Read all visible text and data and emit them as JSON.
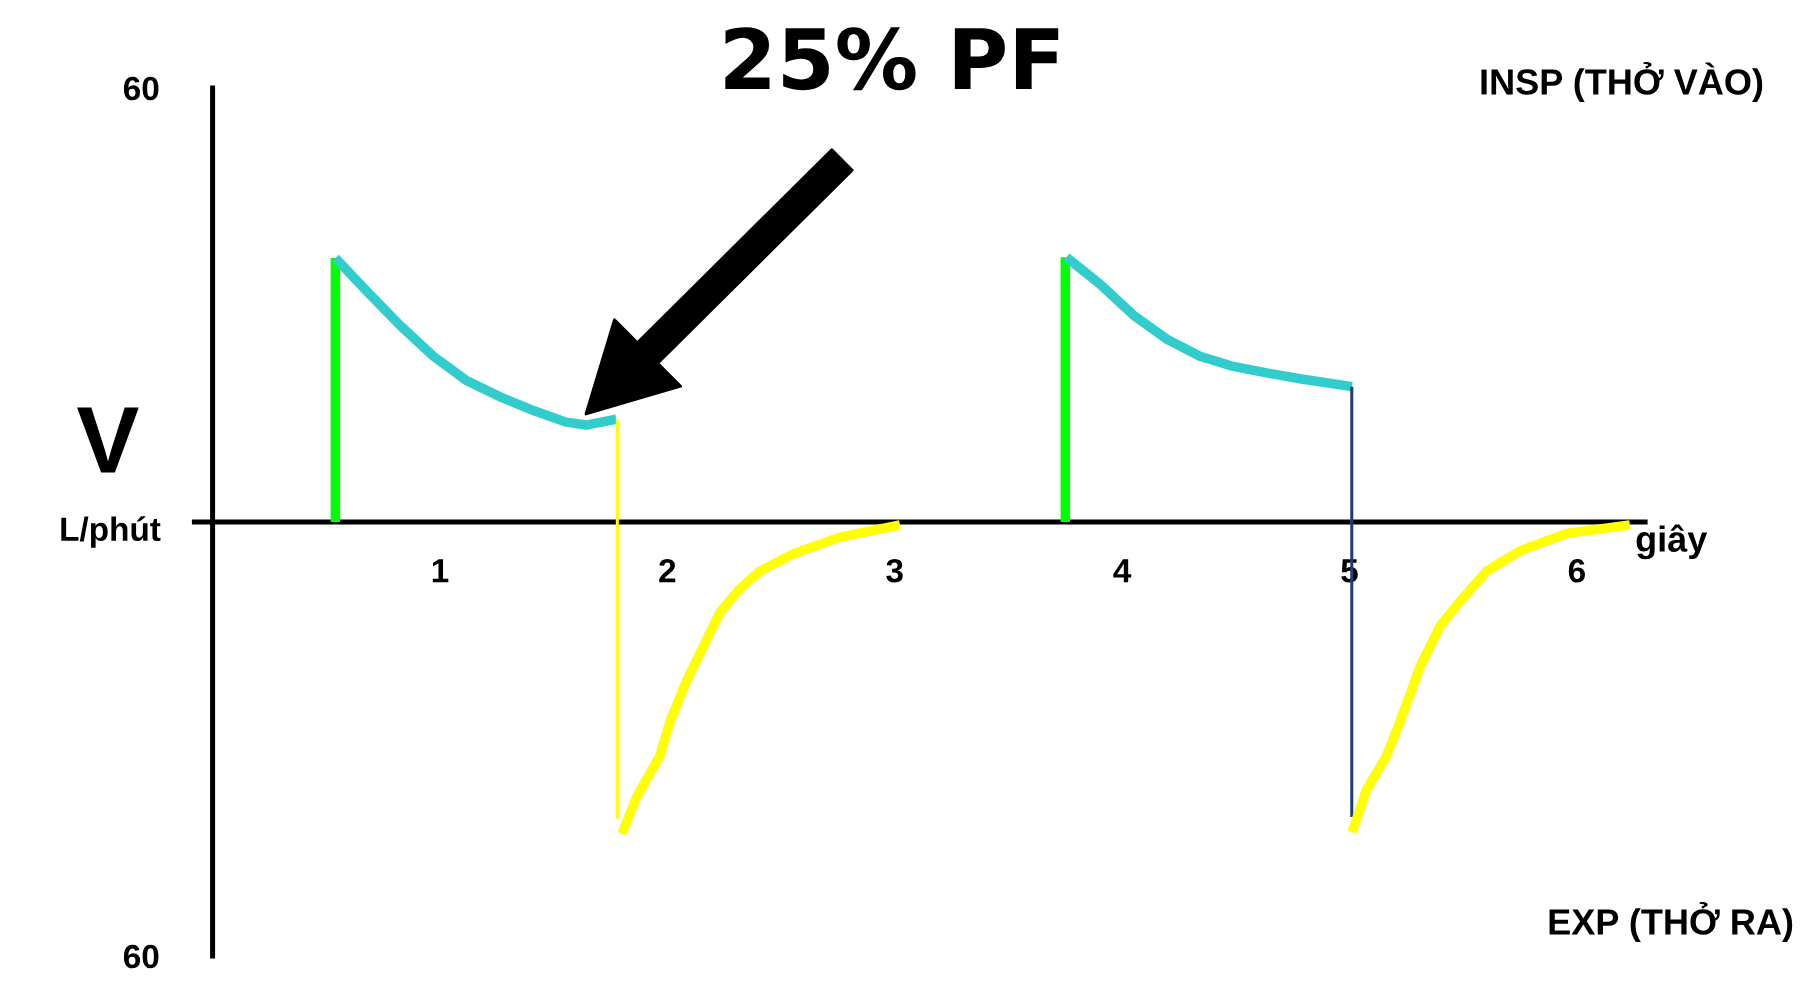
{
  "chart_data": {
    "type": "line",
    "ylabel": "V",
    "xlabel": "giây",
    "xlim": [
      -0.08,
      6.3
    ],
    "xticks": [
      1,
      2,
      3,
      4,
      5,
      6
    ],
    "ylim": [
      -60,
      60
    ],
    "yticks": [
      {
        "value": 60,
        "label": "60"
      },
      {
        "value": -60,
        "label": "60"
      }
    ],
    "grid": false,
    "annotations": [
      "25% PF",
      "INSP (THỞ VÀO)",
      "EXP (THỞ RA)",
      "L/phút"
    ],
    "series": [
      {
        "color": "#00ff00",
        "x": [
          0.54,
          0.54
        ],
        "values": [
          0,
          36.5
        ]
      },
      {
        "color": "#33cccc",
        "x": [
          0.54,
          0.675,
          0.824,
          0.971,
          1.114,
          1.264,
          1.411,
          1.554,
          1.643,
          1.775
        ],
        "values": [
          36.5,
          32.0,
          27.2,
          22.9,
          19.6,
          17.3,
          15.4,
          13.8,
          13.4,
          14.2
        ]
      },
      {
        "color": "#ffff00",
        "x": [
          1.78,
          1.78
        ],
        "values": [
          14.2,
          -41.0
        ]
      },
      {
        "color": "#ffff00",
        "x": [
          1.8,
          1.865,
          1.967,
          2.011,
          2.085,
          2.158,
          2.231,
          2.319,
          2.407,
          2.554,
          2.759,
          3.023
        ],
        "values": [
          -43.1,
          -38.0,
          -32.3,
          -27.6,
          -21.9,
          -17.2,
          -12.5,
          -9.2,
          -6.8,
          -4.4,
          -2.1,
          -0.4
        ]
      },
      {
        "color": "#00ff00",
        "x": [
          3.75,
          3.75
        ],
        "values": [
          0,
          36.6
        ]
      },
      {
        "color": "#33cccc",
        "x": [
          3.755,
          3.902,
          4.049,
          4.195,
          4.342,
          4.489,
          4.635,
          4.782,
          5.011
        ],
        "values": [
          36.6,
          32.9,
          28.6,
          25.3,
          22.9,
          21.5,
          20.6,
          19.8,
          18.7
        ]
      },
      {
        "color": "#1f3d7a",
        "x": [
          5.01,
          5.01
        ],
        "values": [
          18.7,
          -40.8
        ]
      },
      {
        "color": "#ffff00",
        "x": [
          5.011,
          5.075,
          5.163,
          5.222,
          5.31,
          5.398,
          5.485,
          5.603,
          5.749,
          5.954,
          6.233
        ],
        "values": [
          -42.9,
          -37.0,
          -32.3,
          -27.6,
          -20.0,
          -14.4,
          -11.0,
          -6.8,
          -4.0,
          -1.6,
          -0.4
        ]
      }
    ]
  }
}
